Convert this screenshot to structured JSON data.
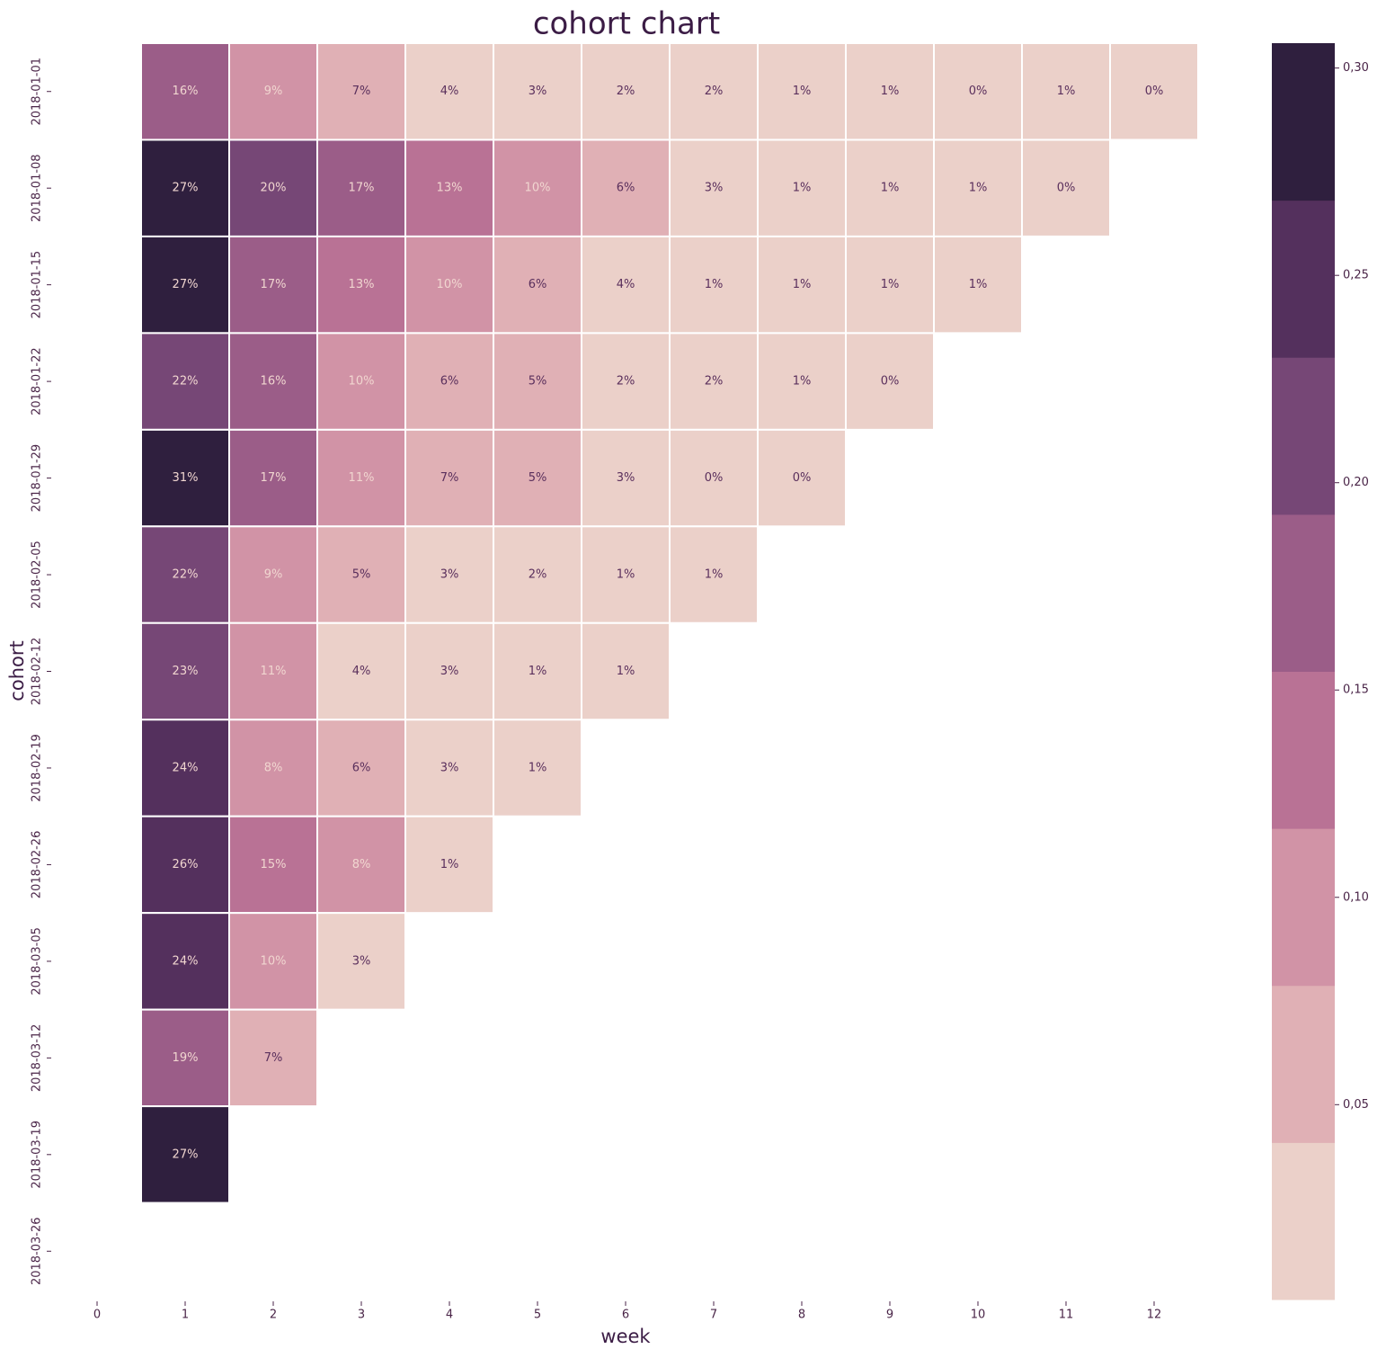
{
  "chart_data": {
    "type": "heatmap",
    "title": "cohort chart",
    "xlabel": "week",
    "ylabel": "cohort",
    "categories": [
      0,
      1,
      2,
      3,
      4,
      5,
      6,
      7,
      8,
      9,
      10,
      11,
      12
    ],
    "rows": [
      "2018-01-01",
      "2018-01-08",
      "2018-01-15",
      "2018-01-22",
      "2018-01-29",
      "2018-02-05",
      "2018-02-12",
      "2018-02-19",
      "2018-02-26",
      "2018-03-05",
      "2018-03-12",
      "2018-03-19",
      "2018-03-26"
    ],
    "values": [
      [
        null,
        0.16,
        0.09,
        0.07,
        0.04,
        0.03,
        0.02,
        0.02,
        0.01,
        0.01,
        0,
        0.01,
        0
      ],
      [
        null,
        0.27,
        0.2,
        0.17,
        0.13,
        0.1,
        0.06,
        0.03,
        0.01,
        0.01,
        0.01,
        0,
        null
      ],
      [
        null,
        0.27,
        0.17,
        0.13,
        0.1,
        0.06,
        0.04,
        0.01,
        0.01,
        0.01,
        0.01,
        null,
        null
      ],
      [
        null,
        0.22,
        0.16,
        0.1,
        0.06,
        0.05,
        0.02,
        0.02,
        0.01,
        0,
        null,
        null,
        null
      ],
      [
        null,
        0.31,
        0.17,
        0.11,
        0.07,
        0.05,
        0.03,
        0,
        0,
        null,
        null,
        null,
        null
      ],
      [
        null,
        0.22,
        0.09,
        0.05,
        0.03,
        0.02,
        0.01,
        0.01,
        null,
        null,
        null,
        null,
        null
      ],
      [
        null,
        0.23,
        0.11,
        0.04,
        0.03,
        0.01,
        0.01,
        null,
        null,
        null,
        null,
        null,
        null
      ],
      [
        null,
        0.24,
        0.08,
        0.06,
        0.03,
        0.01,
        null,
        null,
        null,
        null,
        null,
        null,
        null
      ],
      [
        null,
        0.26,
        0.15,
        0.08,
        0.01,
        null,
        null,
        null,
        null,
        null,
        null,
        null,
        null
      ],
      [
        null,
        0.24,
        0.1,
        0.03,
        null,
        null,
        null,
        null,
        null,
        null,
        null,
        null,
        null
      ],
      [
        null,
        0.19,
        0.07,
        null,
        null,
        null,
        null,
        null,
        null,
        null,
        null,
        null,
        null
      ],
      [
        null,
        0.27,
        null,
        null,
        null,
        null,
        null,
        null,
        null,
        null,
        null,
        null,
        null
      ],
      [
        null,
        null,
        null,
        null,
        null,
        null,
        null,
        null,
        null,
        null,
        null,
        null,
        null
      ]
    ],
    "value_labels": [
      [
        null,
        "16%",
        "9%",
        "7%",
        "4%",
        "3%",
        "2%",
        "2%",
        "1%",
        "1%",
        "0%",
        "1%",
        "0%"
      ],
      [
        null,
        "27%",
        "20%",
        "17%",
        "13%",
        "10%",
        "6%",
        "3%",
        "1%",
        "1%",
        "1%",
        "0%",
        null
      ],
      [
        null,
        "27%",
        "17%",
        "13%",
        "10%",
        "6%",
        "4%",
        "1%",
        "1%",
        "1%",
        "1%",
        null,
        null
      ],
      [
        null,
        "22%",
        "16%",
        "10%",
        "6%",
        "5%",
        "2%",
        "2%",
        "1%",
        "0%",
        null,
        null,
        null
      ],
      [
        null,
        "31%",
        "17%",
        "11%",
        "7%",
        "5%",
        "3%",
        "0%",
        "0%",
        null,
        null,
        null,
        null
      ],
      [
        null,
        "22%",
        "9%",
        "5%",
        "3%",
        "2%",
        "1%",
        "1%",
        null,
        null,
        null,
        null,
        null
      ],
      [
        null,
        "23%",
        "11%",
        "4%",
        "3%",
        "1%",
        "1%",
        null,
        null,
        null,
        null,
        null,
        null
      ],
      [
        null,
        "24%",
        "8%",
        "6%",
        "3%",
        "1%",
        null,
        null,
        null,
        null,
        null,
        null,
        null
      ],
      [
        null,
        "26%",
        "15%",
        "8%",
        "1%",
        null,
        null,
        null,
        null,
        null,
        null,
        null,
        null
      ],
      [
        null,
        "24%",
        "10%",
        "3%",
        null,
        null,
        null,
        null,
        null,
        null,
        null,
        null,
        null
      ],
      [
        null,
        "19%",
        "7%",
        null,
        null,
        null,
        null,
        null,
        null,
        null,
        null,
        null,
        null
      ],
      [
        null,
        "27%",
        null,
        null,
        null,
        null,
        null,
        null,
        null,
        null,
        null,
        null,
        null
      ],
      [
        null,
        null,
        null,
        null,
        null,
        null,
        null,
        null,
        null,
        null,
        null,
        null,
        null
      ]
    ],
    "colors": [
      "#ebd0c9",
      "#e0b0b5",
      "#d193a6",
      "#b97295",
      "#9b5d88",
      "#764776",
      "#54305d",
      "#2f1f3e"
    ],
    "clim": [
      0.003,
      0.306
    ],
    "cticks": [
      {
        "value": 0.05,
        "label": "0,05"
      },
      {
        "value": 0.1,
        "label": "0,10"
      },
      {
        "value": 0.15,
        "label": "0,15"
      },
      {
        "value": 0.2,
        "label": "0,20"
      },
      {
        "value": 0.25,
        "label": "0,25"
      },
      {
        "value": 0.3,
        "label": "0,30"
      }
    ]
  }
}
